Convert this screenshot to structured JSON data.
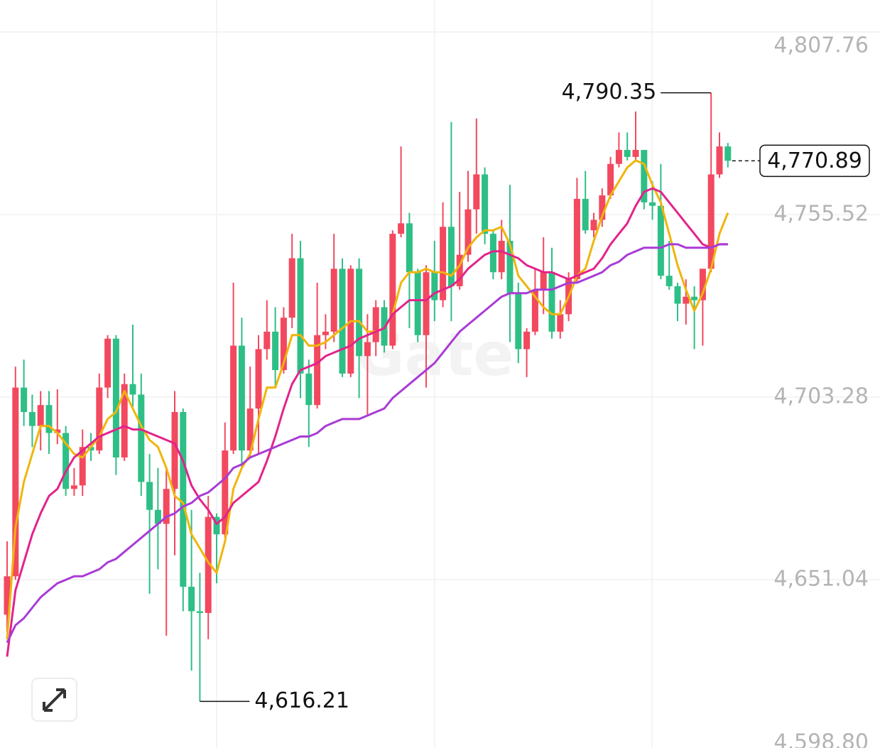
{
  "chart_data": {
    "type": "candlestick",
    "watermark": "Gate",
    "up_color": "#f2495f",
    "down_color": "#2ebf86",
    "ylim": [
      4598.8,
      4816.9
    ],
    "yticks": [
      {
        "value": 4807.76,
        "label": "4,807.76"
      },
      {
        "value": 4755.52,
        "label": "4,755.52"
      },
      {
        "value": 4703.28,
        "label": "4,703.28"
      },
      {
        "value": 4651.04,
        "label": "4,651.04"
      },
      {
        "value": 4598.8,
        "label": "4,598.80"
      }
    ],
    "grid": true,
    "open": [
      4641,
      4652,
      4706,
      4699,
      4695,
      4701,
      4693,
      4693,
      4677,
      4678,
      4689,
      4688,
      4706,
      4720,
      4686,
      4707,
      4704,
      4679,
      4671,
      4667,
      4677,
      4699,
      4649,
      4642,
      4641.5,
      4669,
      4664,
      4688,
      4718,
      4688,
      4700,
      4717,
      4722,
      4711,
      4726,
      4743,
      4710,
      4701,
      4721,
      4722,
      4740,
      4710,
      4740,
      4715,
      4719,
      4729,
      4718,
      4750,
      4753,
      4739,
      4721,
      4739,
      4731,
      4752,
      4735,
      4744,
      4757,
      4767,
      4750,
      4739,
      4748,
      4733,
      4717,
      4722,
      4734,
      4739,
      4722,
      4727,
      4737,
      4760,
      4751,
      4754,
      4761,
      4770,
      4774,
      4772,
      4774,
      4759,
      4758,
      4738,
      4735,
      4730,
      4732,
      4731,
      4740,
      4767,
      4775
    ],
    "high": [
      4662,
      4712,
      4714,
      4704,
      4705,
      4705,
      4705.5,
      4695,
      4683,
      4694,
      4693,
      4710,
      4721,
      4721,
      4710,
      4724,
      4710,
      4687,
      4683,
      4683,
      4705,
      4700,
      4671,
      4653,
      4675,
      4670,
      4696,
      4736,
      4726,
      4712,
      4721,
      4731,
      4729,
      4729,
      4750,
      4748,
      4714,
      4736,
      4727,
      4750,
      4743,
      4741,
      4743,
      4727,
      4731,
      4731,
      4751,
      4775,
      4756,
      4740,
      4741,
      4748,
      4759,
      4782,
      4762,
      4768,
      4783,
      4769,
      4751,
      4754,
      4764,
      4736,
      4723,
      4740,
      4749,
      4746,
      4731,
      4739,
      4766,
      4768,
      4756,
      4763,
      4772,
      4779,
      4779,
      4785,
      4774,
      4765,
      4770,
      4748,
      4736,
      4737,
      4735,
      4740,
      4790.35,
      4779,
      4776
    ],
    "low": [
      4636,
      4651,
      4695,
      4689,
      4688,
      4687,
      4689.8,
      4675,
      4675,
      4675,
      4685,
      4687,
      4703,
      4681,
      4685,
      4700,
      4675,
      4647,
      4654,
      4635,
      4658,
      4642,
      4625,
      4616.21,
      4634,
      4650,
      4663,
      4687,
      4683,
      4686,
      4687,
      4714,
      4706,
      4710,
      4723,
      4703,
      4689,
      4700,
      4717,
      4719,
      4709,
      4709,
      4703,
      4698,
      4715,
      4716,
      4717,
      4749,
      4723,
      4719,
      4706,
      4725,
      4729,
      4725,
      4734,
      4742,
      4750,
      4747,
      4737,
      4737,
      4719,
      4713,
      4709,
      4721,
      4727,
      4720,
      4720,
      4725,
      4736,
      4750,
      4749,
      4752,
      4760,
      4769,
      4771,
      4771,
      4757,
      4754,
      4737,
      4734,
      4725,
      4724,
      4717,
      4718,
      4739,
      4766,
      4769
    ],
    "close": [
      4652,
      4706,
      4699,
      4695,
      4701,
      4693,
      4694,
      4677,
      4678,
      4689,
      4688,
      4706,
      4720,
      4686,
      4707,
      4704,
      4679,
      4671,
      4667,
      4677,
      4699,
      4649,
      4642,
      4641.5,
      4669,
      4664,
      4688,
      4718,
      4688,
      4700,
      4717,
      4722,
      4711,
      4726,
      4743,
      4710,
      4701,
      4721,
      4722,
      4740,
      4710,
      4740,
      4715,
      4719,
      4729,
      4718,
      4750,
      4753,
      4739,
      4721,
      4739,
      4731,
      4752,
      4735,
      4744,
      4757,
      4767,
      4750,
      4739,
      4748,
      4733,
      4717,
      4722,
      4734,
      4739,
      4722,
      4727,
      4737,
      4760,
      4751,
      4754,
      4761,
      4770,
      4774,
      4772,
      4774,
      4759,
      4758,
      4738,
      4735,
      4730,
      4732,
      4731,
      4740,
      4767,
      4775,
      4770.89
    ],
    "series": [
      {
        "color": "#f0b50c",
        "values": [
          4634,
          4666,
          4679,
          4687,
          4695,
          4695,
          4693,
          4690,
          4687,
          4686,
          4689,
          4692,
          4697,
          4699,
          4705,
          4700,
          4695,
          4691,
          4689,
          4683,
          4675,
          4673,
          4664,
          4660,
          4656,
          4653,
          4662,
          4677,
          4683,
          4687,
          4697,
          4706,
          4706,
          4713,
          4721,
          4721,
          4718,
          4718,
          4719,
          4721,
          4723,
          4725,
          4725,
          4722,
          4722,
          4723,
          4727,
          4736,
          4739,
          4739,
          4740,
          4739,
          4739,
          4738,
          4741,
          4746,
          4749,
          4751,
          4751,
          4752,
          4747,
          4738,
          4735,
          4732,
          4729,
          4727,
          4727,
          4732,
          4738,
          4740,
          4748,
          4755,
          4761,
          4765,
          4769,
          4771,
          4770,
          4764,
          4759,
          4750,
          4741,
          4734,
          4728,
          4733,
          4740,
          4750,
          4756
        ]
      },
      {
        "color": "#e2238c",
        "values": [
          4629,
          4648,
          4656,
          4664,
          4670,
          4675,
          4677,
          4682,
          4686,
          4688,
          4690,
          4692,
          4693,
          4694,
          4695,
          4694,
          4694,
          4693,
          4692,
          4691,
          4690,
          4685,
          4678,
          4674,
          4671,
          4667,
          4669,
          4673,
          4675,
          4677,
          4679,
          4685,
          4692,
          4700,
          4707,
          4711,
          4712,
          4713,
          4715,
          4716,
          4717,
          4718,
          4720,
          4721,
          4722,
          4723,
          4727,
          4729,
          4731,
          4731,
          4731,
          4733,
          4734,
          4735,
          4737,
          4740,
          4742,
          4744,
          4745,
          4745,
          4744,
          4743,
          4741,
          4740,
          4739,
          4739,
          4738,
          4737,
          4738,
          4739,
          4740,
          4743,
          4747,
          4750,
          4753,
          4758,
          4762,
          4763,
          4762,
          4759,
          4756,
          4753,
          4750,
          4747,
          4746,
          4747,
          4747
        ]
      },
      {
        "color": "#a93bd6",
        "values": [
          4633,
          4638,
          4640,
          4643,
          4646,
          4648,
          4650,
          4651,
          4652,
          4652,
          4653,
          4654,
          4656,
          4657,
          4659,
          4661,
          4663,
          4665,
          4667,
          4669,
          4670,
          4672,
          4673,
          4675,
          4676,
          4678,
          4680,
          4683,
          4684,
          4686,
          4687,
          4688,
          4689,
          4690,
          4691,
          4692,
          4692,
          4693,
          4695,
          4696,
          4697,
          4697,
          4697,
          4698,
          4699,
          4700,
          4703,
          4705,
          4707,
          4709,
          4711,
          4713,
          4716,
          4719,
          4722,
          4724,
          4726,
          4728,
          4730,
          4732,
          4733,
          4733,
          4733,
          4734,
          4734,
          4734,
          4735,
          4736,
          4736,
          4737,
          4738,
          4739,
          4741,
          4742,
          4744,
          4745,
          4746,
          4746,
          4746,
          4747,
          4747,
          4746,
          4746,
          4746,
          4746,
          4747,
          4747
        ]
      }
    ],
    "annotations": {
      "high_label": "4,790.35",
      "low_label": "4,616.21",
      "last_label": "4,770.89"
    }
  }
}
